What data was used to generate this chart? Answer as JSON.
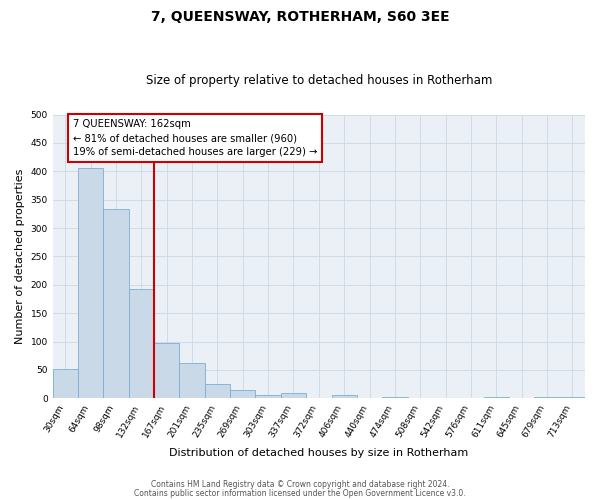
{
  "title": "7, QUEENSWAY, ROTHERHAM, S60 3EE",
  "subtitle": "Size of property relative to detached houses in Rotherham",
  "xlabel": "Distribution of detached houses by size in Rotherham",
  "ylabel": "Number of detached properties",
  "categories": [
    "30sqm",
    "64sqm",
    "98sqm",
    "132sqm",
    "167sqm",
    "201sqm",
    "235sqm",
    "269sqm",
    "303sqm",
    "337sqm",
    "372sqm",
    "406sqm",
    "440sqm",
    "474sqm",
    "508sqm",
    "542sqm",
    "576sqm",
    "611sqm",
    "645sqm",
    "679sqm",
    "713sqm"
  ],
  "values": [
    52,
    405,
    333,
    193,
    97,
    63,
    25,
    14,
    6,
    10,
    0,
    5,
    0,
    2,
    0,
    0,
    0,
    3,
    0,
    2,
    3
  ],
  "bar_color": "#c9d9e8",
  "bar_edge_color": "#7bafd4",
  "vline_color": "#cc0000",
  "vline_index": 3.5,
  "ylim": [
    0,
    500
  ],
  "yticks": [
    0,
    50,
    100,
    150,
    200,
    250,
    300,
    350,
    400,
    450,
    500
  ],
  "annotation_title": "7 QUEENSWAY: 162sqm",
  "annotation_line1": "← 81% of detached houses are smaller (960)",
  "annotation_line2": "19% of semi-detached houses are larger (229) →",
  "annotation_box_color": "#cc0000",
  "grid_color": "#c8d8e8",
  "background_color": "#eaf0f6",
  "footer1": "Contains HM Land Registry data © Crown copyright and database right 2024.",
  "footer2": "Contains public sector information licensed under the Open Government Licence v3.0."
}
